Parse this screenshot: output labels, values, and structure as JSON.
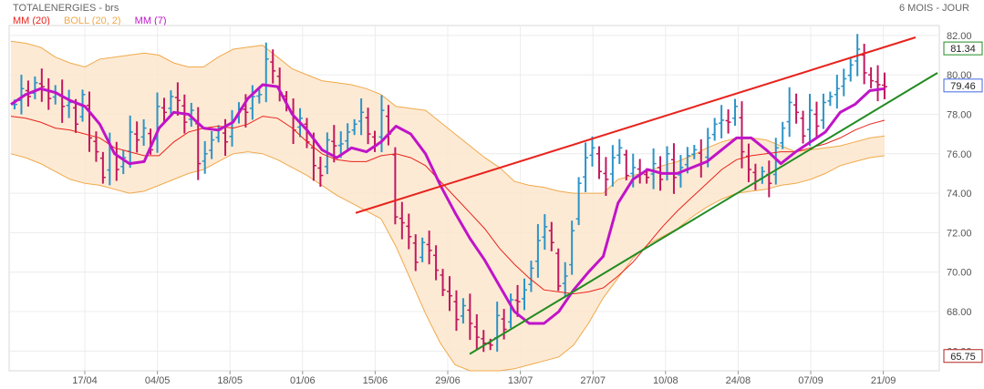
{
  "chart_data": {
    "type": "ohlc",
    "title": "TOTALENERGIES - brs",
    "period_label": "6 MOIS - JOUR",
    "legend": [
      {
        "label": "MM (20)",
        "color": "#e8231d"
      },
      {
        "label": "BOLL (20, 2)",
        "color": "#f0a94b"
      },
      {
        "label": "MM (7)",
        "color": "#c014c8"
      }
    ],
    "y_axis": {
      "min": 65,
      "max": 82.5,
      "ticks": [
        66,
        68,
        70,
        72,
        74,
        76,
        78,
        80,
        82
      ],
      "tick_labels": [
        "66.00",
        "68.00",
        "70.00",
        "72.00",
        "74.00",
        "76.00",
        "78.00",
        "80.00",
        "82.00"
      ]
    },
    "x_tick_labels": [
      "17/04",
      "04/05",
      "18/05",
      "01/06",
      "15/06",
      "29/06",
      "13/07",
      "27/07",
      "10/08",
      "24/08",
      "07/09",
      "21/09"
    ],
    "price_badges": [
      {
        "label": "81.34",
        "value": 81.34,
        "color": "#228b22"
      },
      {
        "label": "79.46",
        "value": 79.46,
        "color": "#4169e1"
      },
      {
        "label": "65.75",
        "value": 65.75,
        "color": "#b22222"
      }
    ],
    "closes": [
      78.5,
      79.3,
      78.9,
      79.6,
      79.4,
      78.8,
      79.1,
      78.4,
      78.6,
      77.5,
      79.0,
      76.8,
      76.1,
      74.8,
      76.3,
      75.2,
      75.8,
      77.1,
      76.7,
      77.3,
      76.2,
      78.4,
      78.1,
      78.9,
      78.7,
      77.6,
      78.2,
      75.5,
      76.0,
      76.7,
      77.2,
      76.6,
      77.7,
      78.3,
      78.1,
      78.9,
      79.0,
      80.8,
      80.2,
      79.1,
      78.4,
      77.2,
      77.8,
      76.6,
      75.4,
      74.9,
      76.7,
      76.4,
      76.5,
      77.1,
      77.5,
      78.1,
      77.0,
      76.4,
      78.2,
      77.0,
      72.8,
      72.5,
      71.8,
      70.5,
      71.5,
      71.1,
      70.1,
      69.1,
      68.8,
      67.6,
      68.3,
      67.4,
      66.7,
      66.4,
      66.3,
      67.8,
      67.1,
      68.6,
      68.5,
      69.1,
      70.2,
      71.6,
      72.3,
      71.5,
      69.3,
      69.8,
      72.1,
      74.5,
      75.8,
      76.3,
      75.1,
      74.7,
      75.8,
      76.3,
      74.9,
      75.3,
      75.0,
      74.8,
      75.5,
      74.7,
      76.0,
      74.8,
      75.3,
      75.9,
      76.2,
      75.5,
      76.8,
      77.5,
      77.7,
      77.6,
      78.4,
      76.1,
      75.2,
      74.6,
      75.1,
      74.5,
      76.3,
      77.3,
      78.6,
      78.1,
      76.9,
      78.2,
      77.4,
      78.6,
      78.9,
      79.3,
      79.8,
      80.5,
      81.3,
      80.1,
      79.7,
      79.5,
      79.4
    ],
    "ma7": [
      78.5,
      79.0,
      79.3,
      79.1,
      78.7,
      78.4,
      77.5,
      76.0,
      75.5,
      75.6,
      77.3,
      78.1,
      78.0,
      77.3,
      77.2,
      77.6,
      78.8,
      79.5,
      79.4,
      78.0,
      77.2,
      76.2,
      75.8,
      76.3,
      76.1,
      76.6,
      77.4,
      77.0,
      76.0,
      74.4,
      73.0,
      71.7,
      70.6,
      69.3,
      68.0,
      67.4,
      67.4,
      68.0,
      69.1,
      70.0,
      70.8,
      73.5,
      74.7,
      75.2,
      75.0,
      75.0,
      75.3,
      75.6,
      76.2,
      76.8,
      76.8,
      76.2,
      75.5,
      76.1,
      76.6,
      77.1,
      78.1,
      78.5,
      79.2,
      79.3
    ],
    "ma20": [
      77.9,
      77.8,
      77.6,
      77.3,
      77.2,
      77.0,
      76.8,
      76.3,
      76.1,
      75.9,
      75.9,
      76.6,
      77.1,
      77.3,
      77.4,
      77.3,
      77.5,
      77.9,
      77.8,
      77.3,
      76.6,
      76.0,
      75.7,
      75.6,
      75.6,
      75.9,
      76.0,
      75.8,
      75.4,
      74.6,
      73.8,
      73.0,
      72.2,
      71.2,
      70.4,
      69.7,
      69.1,
      69.0,
      68.9,
      69.0,
      69.2,
      69.8,
      70.5,
      71.4,
      72.3,
      73.1,
      73.8,
      74.5,
      75.2,
      75.7,
      75.9,
      76.0,
      76.1,
      76.1,
      76.3,
      76.5,
      76.8,
      77.2,
      77.5,
      77.7
    ],
    "boll_upper": [
      81.7,
      81.6,
      81.4,
      80.9,
      80.6,
      80.4,
      80.8,
      80.9,
      81.0,
      81.1,
      81.0,
      80.6,
      80.4,
      80.4,
      80.9,
      81.3,
      81.4,
      81.5,
      80.9,
      80.3,
      80.0,
      79.7,
      79.6,
      79.5,
      79.3,
      79.0,
      78.4,
      78.3,
      78.2,
      77.6,
      77.0,
      76.4,
      75.8,
      75.3,
      74.6,
      74.4,
      74.3,
      74.1,
      74.0,
      74.0,
      74.0,
      74.7,
      74.9,
      75.1,
      75.4,
      75.6,
      75.9,
      76.3,
      76.6,
      76.8,
      76.8,
      76.7,
      76.4,
      76.1,
      76.2,
      76.3,
      76.4,
      76.6,
      76.8,
      76.9
    ],
    "boll_lower": [
      76.0,
      75.8,
      75.5,
      75.1,
      74.7,
      74.5,
      74.4,
      74.2,
      74.0,
      74.1,
      74.4,
      74.7,
      75.0,
      75.2,
      75.6,
      76.0,
      76.1,
      76.0,
      75.7,
      75.3,
      74.9,
      74.4,
      73.9,
      73.5,
      73.1,
      72.7,
      71.3,
      69.6,
      67.9,
      66.4,
      65.3,
      65.0,
      65.0,
      65.0,
      65.1,
      65.3,
      65.5,
      65.7,
      66.3,
      67.4,
      68.7,
      69.7,
      70.7,
      71.4,
      71.8,
      72.2,
      72.8,
      73.3,
      73.7,
      74.0,
      74.1,
      74.2,
      74.4,
      74.5,
      74.7,
      75.0,
      75.4,
      75.6,
      75.8,
      75.9
    ],
    "trendlines": [
      {
        "color": "#e8231d",
        "from": [
          0.0,
          73.0
        ],
        "to": [
          1.0,
          81.9
        ]
      },
      {
        "color": "#228b22",
        "from": [
          0.0,
          65.85
        ],
        "to": [
          1.0,
          80.1
        ]
      }
    ]
  }
}
